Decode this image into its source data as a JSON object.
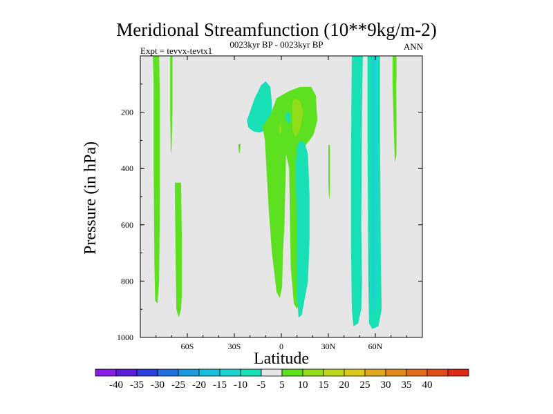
{
  "chart_data": {
    "type": "heatmap",
    "title": "Meridional Streamfunction (10**9kg/m-2)",
    "subtitle": "0023kyr BP - 0023kyr BP",
    "left_label": "Expt = tevvx-tevtx1",
    "right_label": "ANN",
    "xlabel": "Latitude",
    "ylabel": "Pressure (in hPa)",
    "xlim": [
      -90,
      90
    ],
    "ylim": [
      1000,
      0
    ],
    "x_ticks": [
      {
        "value": -60,
        "label": "60S"
      },
      {
        "value": -30,
        "label": "30S"
      },
      {
        "value": 0,
        "label": "0"
      },
      {
        "value": 30,
        "label": "30N"
      },
      {
        "value": 60,
        "label": "60N"
      }
    ],
    "y_ticks": [
      {
        "value": 200,
        "label": "200"
      },
      {
        "value": 400,
        "label": "400"
      },
      {
        "value": 600,
        "label": "600"
      },
      {
        "value": 800,
        "label": "800"
      },
      {
        "value": 1000,
        "label": "1000"
      }
    ],
    "background_color": "#e6e6e6",
    "colorbar": {
      "colors": [
        "#8a1ee0",
        "#5a20d8",
        "#2c3fd8",
        "#1e70dc",
        "#1a9be0",
        "#19bfe0",
        "#1dd4d4",
        "#19e0b4",
        "#e6e6e6",
        "#5ce01f",
        "#92dc18",
        "#c0d81a",
        "#dcc818",
        "#e0a81a",
        "#e08818",
        "#e06a18",
        "#e04c18",
        "#e02818"
      ],
      "labels": [
        "-40",
        "-35",
        "-30",
        "-25",
        "-20",
        "-15",
        "-10",
        "-5",
        "5",
        "10",
        "15",
        "20",
        "25",
        "30",
        "35",
        "40"
      ]
    },
    "regions": [
      {
        "value": 7,
        "points": [
          [
            -82,
            0
          ],
          [
            -78,
            0
          ],
          [
            -77.5,
            150
          ],
          [
            -77.5,
            500
          ],
          [
            -78,
            800
          ],
          [
            -79,
            880
          ],
          [
            -80.5,
            870
          ],
          [
            -81,
            750
          ],
          [
            -81.5,
            400
          ],
          [
            -81.5,
            100
          ]
        ]
      },
      {
        "value": 7,
        "points": [
          [
            -71,
            0
          ],
          [
            -69.5,
            0
          ],
          [
            -69.5,
            200
          ],
          [
            -70,
            330
          ],
          [
            -70.5,
            350
          ],
          [
            -71,
            200
          ]
        ]
      },
      {
        "value": 7,
        "points": [
          [
            -68,
            450
          ],
          [
            -64,
            450
          ],
          [
            -63.5,
            650
          ],
          [
            -63.5,
            850
          ],
          [
            -64,
            900
          ],
          [
            -65.5,
            930
          ],
          [
            -67,
            900
          ],
          [
            -67.5,
            700
          ]
        ]
      },
      {
        "value": 7,
        "points": [
          [
            -27.5,
            315
          ],
          [
            -26,
            312
          ],
          [
            -26.5,
            345
          ],
          [
            -27,
            345
          ]
        ]
      },
      {
        "value": -7,
        "points": [
          [
            -22,
            230
          ],
          [
            -17,
            150
          ],
          [
            -13,
            105
          ],
          [
            -10,
            90
          ],
          [
            -7,
            110
          ],
          [
            -6,
            170
          ],
          [
            -6.5,
            230
          ],
          [
            -10,
            265
          ],
          [
            -14,
            272
          ],
          [
            -18,
            268
          ],
          [
            -21,
            255
          ]
        ]
      },
      {
        "value": 7,
        "points": [
          [
            -12,
            250
          ],
          [
            -7,
            210
          ],
          [
            -3,
            150
          ],
          [
            5,
            125
          ],
          [
            12,
            110
          ],
          [
            19,
            110
          ],
          [
            22,
            140
          ],
          [
            23,
            230
          ],
          [
            20.5,
            280
          ],
          [
            18,
            300
          ],
          [
            15,
            320
          ],
          [
            13,
            360
          ],
          [
            12,
            500
          ],
          [
            11,
            600
          ],
          [
            12,
            770
          ],
          [
            11,
            880
          ],
          [
            10,
            900
          ],
          [
            8,
            880
          ],
          [
            6,
            750
          ],
          [
            5,
            400
          ],
          [
            3,
            350
          ],
          [
            2,
            600
          ],
          [
            1,
            700
          ],
          [
            0.5,
            820
          ],
          [
            -1,
            860
          ],
          [
            -3,
            840
          ],
          [
            -6,
            700
          ],
          [
            -8,
            550
          ],
          [
            -9.5,
            400
          ],
          [
            -10.5,
            300
          ]
        ]
      },
      {
        "value": 12,
        "points": [
          [
            7,
            170
          ],
          [
            8,
            150
          ],
          [
            12,
            160
          ],
          [
            14,
            200
          ],
          [
            12,
            260
          ],
          [
            9,
            290
          ],
          [
            7,
            260
          ]
        ]
      },
      {
        "value": 12,
        "points": [
          [
            -1.5,
            265
          ],
          [
            -1,
            240
          ],
          [
            0,
            250
          ],
          [
            0,
            270
          ],
          [
            -1,
            280
          ]
        ]
      },
      {
        "value": -7,
        "points": [
          [
            5,
            200
          ],
          [
            3,
            200
          ],
          [
            3,
            230
          ],
          [
            5,
            240
          ],
          [
            6,
            230
          ]
        ]
      },
      {
        "value": -7,
        "points": [
          [
            10,
            320
          ],
          [
            12,
            300
          ],
          [
            15,
            310
          ],
          [
            17,
            350
          ],
          [
            18,
            500
          ],
          [
            18,
            650
          ],
          [
            17,
            800
          ],
          [
            15,
            860
          ],
          [
            13,
            920
          ],
          [
            11,
            930
          ],
          [
            10,
            850
          ],
          [
            10,
            700
          ],
          [
            9.5,
            500
          ],
          [
            9,
            400
          ]
        ]
      },
      {
        "value": 7,
        "points": [
          [
            30,
            315
          ],
          [
            31,
            318
          ],
          [
            31,
            490
          ],
          [
            30.5,
            510
          ],
          [
            30,
            450
          ]
        ]
      },
      {
        "value": -7,
        "points": [
          [
            45,
            0
          ],
          [
            52,
            0
          ],
          [
            51.5,
            200
          ],
          [
            51,
            600
          ],
          [
            51.5,
            800
          ],
          [
            51,
            900
          ],
          [
            49,
            950
          ],
          [
            46,
            960
          ],
          [
            45,
            900
          ],
          [
            44.5,
            700
          ],
          [
            44.5,
            300
          ]
        ]
      },
      {
        "value": -7,
        "points": [
          [
            55,
            0
          ],
          [
            63,
            0
          ],
          [
            63,
            300
          ],
          [
            63.5,
            700
          ],
          [
            64,
            900
          ],
          [
            62,
            960
          ],
          [
            58,
            970
          ],
          [
            56,
            950
          ],
          [
            55.5,
            800
          ],
          [
            55,
            300
          ]
        ]
      },
      {
        "value": -12,
        "points": [
          [
            58,
            0
          ],
          [
            61,
            0
          ],
          [
            61.5,
            300
          ],
          [
            61,
            700
          ],
          [
            60.5,
            900
          ],
          [
            59,
            910
          ],
          [
            58,
            850
          ],
          [
            58,
            300
          ]
        ]
      },
      {
        "value": 7,
        "points": [
          [
            71,
            0
          ],
          [
            73,
            0
          ],
          [
            73.5,
            200
          ],
          [
            73.5,
            350
          ],
          [
            72.5,
            380
          ],
          [
            72,
            300
          ],
          [
            71,
            100
          ]
        ]
      },
      {
        "value": 7,
        "points": [
          [
            71.5,
            0
          ],
          [
            73.5,
            0
          ],
          [
            73.5,
            100
          ]
        ]
      }
    ]
  }
}
